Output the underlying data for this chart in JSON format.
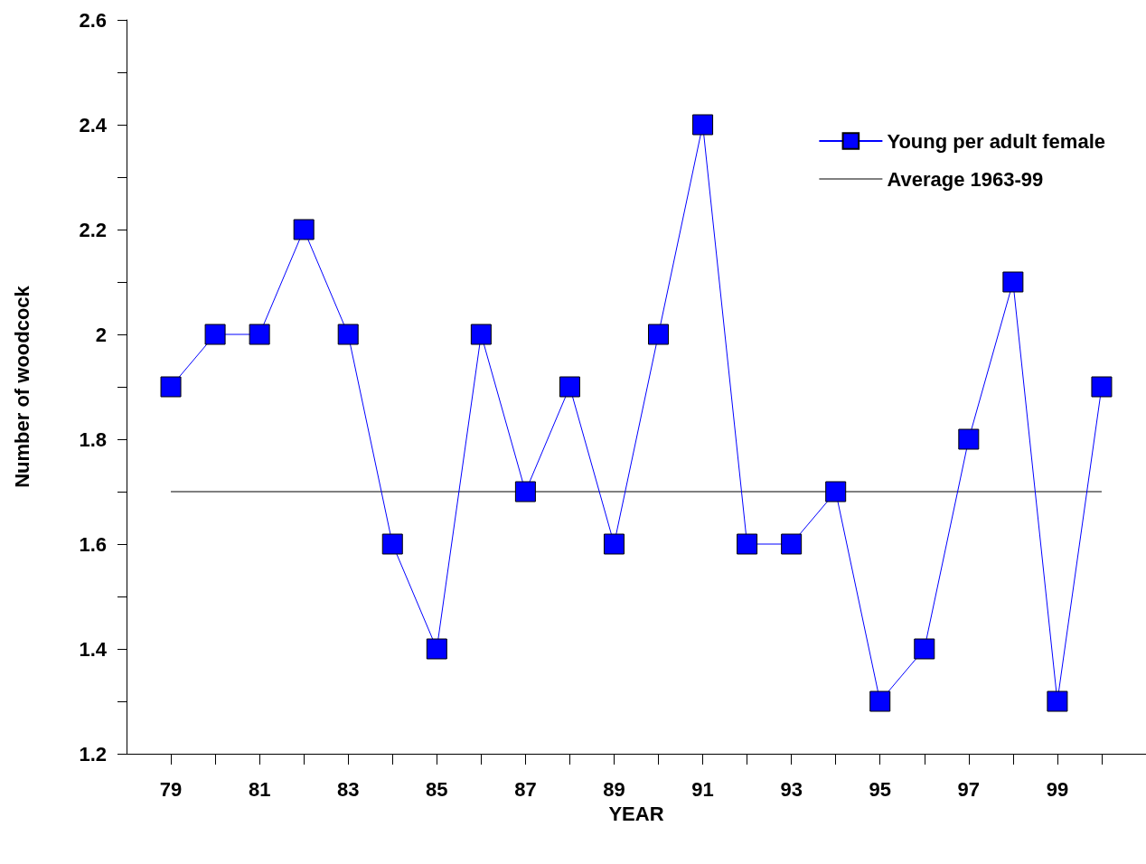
{
  "chart_data": {
    "type": "line",
    "xlabel": "YEAR",
    "ylabel": "Number of woodcock",
    "x": [
      79,
      80,
      81,
      82,
      83,
      84,
      85,
      86,
      87,
      88,
      89,
      90,
      91,
      92,
      93,
      94,
      95,
      96,
      97,
      98,
      99,
      100
    ],
    "series": [
      {
        "name": "Young per adult female",
        "color": "#0000ff",
        "marker": "square",
        "values": [
          1.9,
          2.0,
          2.0,
          2.2,
          2.0,
          1.6,
          1.4,
          2.0,
          1.7,
          1.9,
          1.6,
          2.0,
          2.4,
          1.6,
          1.6,
          1.7,
          1.3,
          1.4,
          1.8,
          2.1,
          1.3,
          1.9
        ]
      },
      {
        "name": "Average 1963-99",
        "color": "#000000",
        "marker": "none",
        "x": [
          79,
          100
        ],
        "values": [
          1.7,
          1.7
        ]
      }
    ],
    "xlim": [
      78,
      101
    ],
    "xticks": [
      79,
      {
        "value": 80,
        "label": null
      },
      81,
      {
        "value": 82,
        "label": null
      },
      83,
      {
        "value": 84,
        "label": null
      },
      85,
      {
        "value": 86,
        "label": null
      },
      87,
      {
        "value": 88,
        "label": null
      },
      89,
      {
        "value": 90,
        "label": null
      },
      91,
      {
        "value": 92,
        "label": null
      },
      93,
      {
        "value": 94,
        "label": null
      },
      95,
      {
        "value": 96,
        "label": null
      },
      97,
      {
        "value": 98,
        "label": null
      },
      99,
      {
        "value": 100,
        "label": null
      }
    ],
    "ylim": [
      1.2,
      2.6
    ],
    "yticks": [
      1.2,
      {
        "value": 1.3,
        "label": null
      },
      1.4,
      {
        "value": 1.5,
        "label": null
      },
      1.6,
      {
        "value": 1.7,
        "label": null
      },
      1.8,
      {
        "value": 1.9,
        "label": null
      },
      2,
      {
        "value": 2.1,
        "label": null
      },
      2.2,
      {
        "value": 2.3,
        "label": null
      },
      2.4,
      {
        "value": 2.5,
        "label": null
      },
      2.6
    ],
    "grid": false,
    "legend": "top right",
    "line_style": "solid"
  }
}
